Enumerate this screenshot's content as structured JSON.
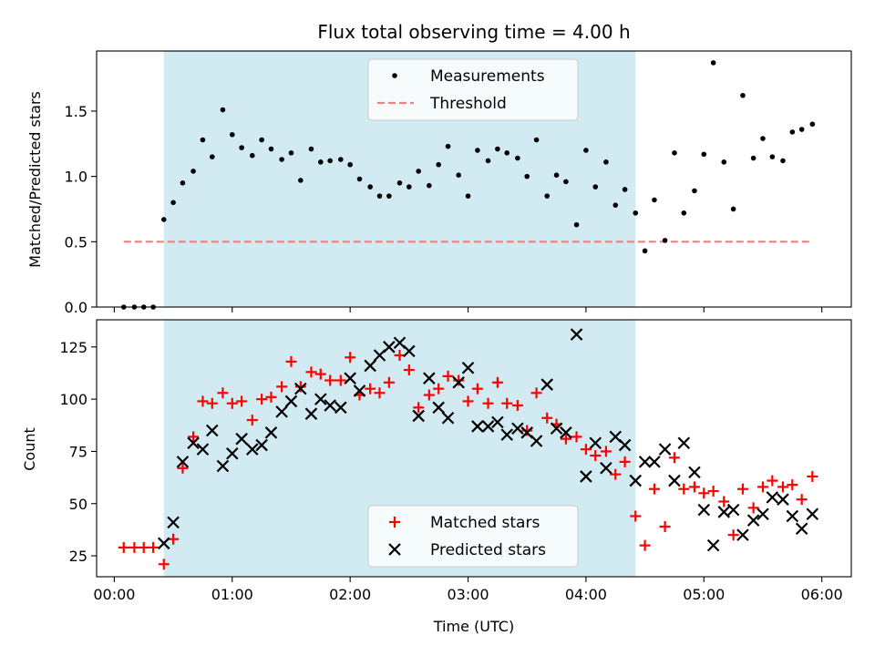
{
  "chart_data": [
    {
      "type": "scatter",
      "title": "Flux total observing time = 4.00 h",
      "xlabel": "",
      "ylabel": "Matched/Predicted stars",
      "xlim": [
        -0.15,
        6.25
      ],
      "ylim": [
        0,
        1.96
      ],
      "shaded_span": [
        0.42,
        4.42
      ],
      "x_ticks": [
        0,
        1,
        2,
        3,
        4,
        5,
        6
      ],
      "y_ticks": [
        {
          "value": 0.0,
          "label": "0.0"
        },
        {
          "value": 0.5,
          "label": "0.5"
        },
        {
          "value": 1.0,
          "label": "1.0"
        },
        {
          "value": 1.5,
          "label": "1.5"
        }
      ],
      "legend": {
        "position": "top-center",
        "entries": [
          "Measurements",
          "Threshold"
        ]
      },
      "series": [
        {
          "name": "Measurements",
          "marker": "dot",
          "color": "#000000",
          "points": [
            [
              0.08,
              0.0
            ],
            [
              0.17,
              0.0
            ],
            [
              0.25,
              0.0
            ],
            [
              0.33,
              0.0
            ],
            [
              0.42,
              0.67
            ],
            [
              0.5,
              0.8
            ],
            [
              0.58,
              0.95
            ],
            [
              0.67,
              1.04
            ],
            [
              0.75,
              1.28
            ],
            [
              0.83,
              1.15
            ],
            [
              0.92,
              1.51
            ],
            [
              1.0,
              1.32
            ],
            [
              1.08,
              1.22
            ],
            [
              1.17,
              1.16
            ],
            [
              1.25,
              1.28
            ],
            [
              1.33,
              1.21
            ],
            [
              1.42,
              1.13
            ],
            [
              1.5,
              1.18
            ],
            [
              1.58,
              0.97
            ],
            [
              1.67,
              1.21
            ],
            [
              1.75,
              1.11
            ],
            [
              1.83,
              1.12
            ],
            [
              1.92,
              1.13
            ],
            [
              2.0,
              1.09
            ],
            [
              2.08,
              0.98
            ],
            [
              2.17,
              0.92
            ],
            [
              2.25,
              0.85
            ],
            [
              2.33,
              0.85
            ],
            [
              2.42,
              0.95
            ],
            [
              2.5,
              0.92
            ],
            [
              2.58,
              1.04
            ],
            [
              2.67,
              0.93
            ],
            [
              2.75,
              1.09
            ],
            [
              2.83,
              1.23
            ],
            [
              2.92,
              1.01
            ],
            [
              3.0,
              0.85
            ],
            [
              3.08,
              1.2
            ],
            [
              3.17,
              1.12
            ],
            [
              3.25,
              1.21
            ],
            [
              3.33,
              1.18
            ],
            [
              3.42,
              1.14
            ],
            [
              3.5,
              1.0
            ],
            [
              3.58,
              1.28
            ],
            [
              3.67,
              0.85
            ],
            [
              3.75,
              1.01
            ],
            [
              3.83,
              0.96
            ],
            [
              3.92,
              0.63
            ],
            [
              4.0,
              1.2
            ],
            [
              4.08,
              0.92
            ],
            [
              4.17,
              1.11
            ],
            [
              4.25,
              0.78
            ],
            [
              4.33,
              0.9
            ],
            [
              4.42,
              0.72
            ],
            [
              4.5,
              0.43
            ],
            [
              4.58,
              0.82
            ],
            [
              4.67,
              0.51
            ],
            [
              4.75,
              1.18
            ],
            [
              4.83,
              0.72
            ],
            [
              4.92,
              0.89
            ],
            [
              5.0,
              1.17
            ],
            [
              5.08,
              1.87
            ],
            [
              5.17,
              1.11
            ],
            [
              5.25,
              0.75
            ],
            [
              5.33,
              1.62
            ],
            [
              5.42,
              1.14
            ],
            [
              5.5,
              1.29
            ],
            [
              5.58,
              1.15
            ],
            [
              5.67,
              1.12
            ],
            [
              5.75,
              1.34
            ],
            [
              5.83,
              1.36
            ],
            [
              5.92,
              1.4
            ]
          ]
        },
        {
          "name": "Threshold",
          "type": "line",
          "style": "dashed",
          "color": "#f08080",
          "points": [
            [
              0.08,
              0.5
            ],
            [
              5.92,
              0.5
            ]
          ]
        }
      ]
    },
    {
      "type": "scatter",
      "title": "",
      "xlabel": "Time (UTC)",
      "ylabel": "Count",
      "xlim": [
        -0.15,
        6.25
      ],
      "ylim": [
        15,
        138
      ],
      "shaded_span": [
        0.42,
        4.42
      ],
      "x_ticks": [
        {
          "value": 0,
          "label": "00:00"
        },
        {
          "value": 1,
          "label": "01:00"
        },
        {
          "value": 2,
          "label": "02:00"
        },
        {
          "value": 3,
          "label": "03:00"
        },
        {
          "value": 4,
          "label": "04:00"
        },
        {
          "value": 5,
          "label": "05:00"
        },
        {
          "value": 6,
          "label": "06:00"
        }
      ],
      "y_ticks": [
        {
          "value": 25,
          "label": "25"
        },
        {
          "value": 50,
          "label": "50"
        },
        {
          "value": 75,
          "label": "75"
        },
        {
          "value": 100,
          "label": "100"
        },
        {
          "value": 125,
          "label": "125"
        }
      ],
      "legend": {
        "position": "bottom-center",
        "entries": [
          "Matched stars",
          "Predicted stars"
        ]
      },
      "series": [
        {
          "name": "Matched stars",
          "marker": "plus",
          "color": "#ff0000",
          "points": [
            [
              0.08,
              29
            ],
            [
              0.17,
              29
            ],
            [
              0.25,
              29
            ],
            [
              0.33,
              29
            ],
            [
              0.42,
              21
            ],
            [
              0.5,
              33
            ],
            [
              0.58,
              67
            ],
            [
              0.67,
              82
            ],
            [
              0.75,
              99
            ],
            [
              0.83,
              98
            ],
            [
              0.92,
              103
            ],
            [
              1.0,
              98
            ],
            [
              1.08,
              99
            ],
            [
              1.17,
              90
            ],
            [
              1.25,
              100
            ],
            [
              1.33,
              101
            ],
            [
              1.42,
              106
            ],
            [
              1.5,
              118
            ],
            [
              1.58,
              106
            ],
            [
              1.67,
              113
            ],
            [
              1.75,
              112
            ],
            [
              1.83,
              109
            ],
            [
              1.92,
              109
            ],
            [
              2.0,
              120
            ],
            [
              2.08,
              102
            ],
            [
              2.17,
              105
            ],
            [
              2.25,
              103
            ],
            [
              2.33,
              108
            ],
            [
              2.42,
              121
            ],
            [
              2.5,
              114
            ],
            [
              2.58,
              96
            ],
            [
              2.67,
              102
            ],
            [
              2.75,
              105
            ],
            [
              2.83,
              111
            ],
            [
              2.92,
              109
            ],
            [
              3.0,
              99
            ],
            [
              3.08,
              105
            ],
            [
              3.17,
              98
            ],
            [
              3.25,
              108
            ],
            [
              3.33,
              98
            ],
            [
              3.42,
              97
            ],
            [
              3.5,
              85
            ],
            [
              3.58,
              103
            ],
            [
              3.67,
              91
            ],
            [
              3.75,
              88
            ],
            [
              3.83,
              81
            ],
            [
              3.92,
              82
            ],
            [
              4.0,
              76
            ],
            [
              4.08,
              73
            ],
            [
              4.17,
              75
            ],
            [
              4.25,
              64
            ],
            [
              4.33,
              70
            ],
            [
              4.42,
              44
            ],
            [
              4.5,
              30
            ],
            [
              4.58,
              57
            ],
            [
              4.67,
              39
            ],
            [
              4.75,
              72
            ],
            [
              4.83,
              57
            ],
            [
              4.92,
              58
            ],
            [
              5.0,
              55
            ],
            [
              5.08,
              56
            ],
            [
              5.17,
              51
            ],
            [
              5.25,
              35
            ],
            [
              5.33,
              57
            ],
            [
              5.42,
              48
            ],
            [
              5.5,
              58
            ],
            [
              5.58,
              61
            ],
            [
              5.67,
              58
            ],
            [
              5.75,
              59
            ],
            [
              5.83,
              52
            ],
            [
              5.92,
              63
            ]
          ]
        },
        {
          "name": "Predicted stars",
          "marker": "x",
          "color": "#000000",
          "points": [
            [
              0.42,
              31
            ],
            [
              0.5,
              41
            ],
            [
              0.58,
              70
            ],
            [
              0.67,
              79
            ],
            [
              0.75,
              76
            ],
            [
              0.83,
              85
            ],
            [
              0.92,
              68
            ],
            [
              1.0,
              74
            ],
            [
              1.08,
              81
            ],
            [
              1.17,
              76
            ],
            [
              1.25,
              78
            ],
            [
              1.33,
              84
            ],
            [
              1.42,
              94
            ],
            [
              1.5,
              99
            ],
            [
              1.58,
              105
            ],
            [
              1.67,
              93
            ],
            [
              1.75,
              100
            ],
            [
              1.83,
              97
            ],
            [
              1.92,
              96
            ],
            [
              2.0,
              110
            ],
            [
              2.08,
              104
            ],
            [
              2.17,
              116
            ],
            [
              2.25,
              121
            ],
            [
              2.33,
              125
            ],
            [
              2.42,
              127
            ],
            [
              2.5,
              123
            ],
            [
              2.58,
              92
            ],
            [
              2.67,
              110
            ],
            [
              2.75,
              96
            ],
            [
              2.83,
              91
            ],
            [
              2.92,
              108
            ],
            [
              3.0,
              115
            ],
            [
              3.08,
              87
            ],
            [
              3.17,
              87
            ],
            [
              3.25,
              89
            ],
            [
              3.33,
              83
            ],
            [
              3.42,
              86
            ],
            [
              3.5,
              84
            ],
            [
              3.58,
              80
            ],
            [
              3.67,
              107
            ],
            [
              3.75,
              86
            ],
            [
              3.83,
              84
            ],
            [
              3.92,
              131
            ],
            [
              4.0,
              63
            ],
            [
              4.08,
              79
            ],
            [
              4.17,
              67
            ],
            [
              4.25,
              82
            ],
            [
              4.33,
              78
            ],
            [
              4.42,
              61
            ],
            [
              4.5,
              70
            ],
            [
              4.58,
              70
            ],
            [
              4.67,
              76
            ],
            [
              4.75,
              61
            ],
            [
              4.83,
              79
            ],
            [
              4.92,
              65
            ],
            [
              5.0,
              47
            ],
            [
              5.08,
              30
            ],
            [
              5.17,
              46
            ],
            [
              5.25,
              47
            ],
            [
              5.33,
              35
            ],
            [
              5.42,
              42
            ],
            [
              5.5,
              45
            ],
            [
              5.58,
              53
            ],
            [
              5.67,
              52
            ],
            [
              5.75,
              44
            ],
            [
              5.83,
              38
            ],
            [
              5.92,
              45
            ]
          ]
        }
      ]
    }
  ]
}
